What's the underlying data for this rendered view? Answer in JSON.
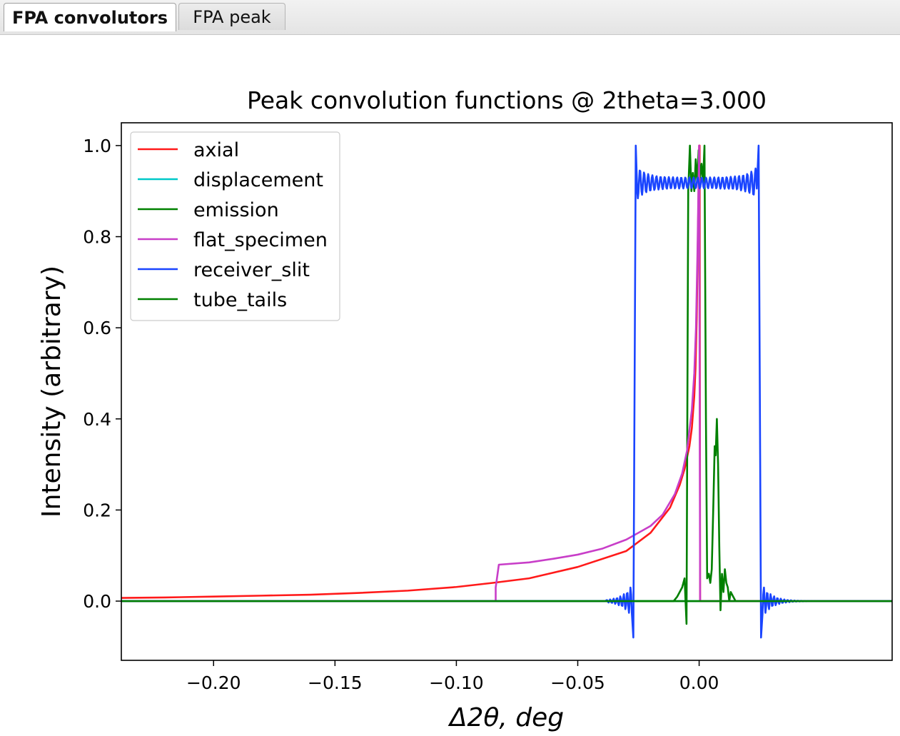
{
  "tabs": [
    {
      "label": "FPA convolutors",
      "active": true
    },
    {
      "label": "FPA peak",
      "active": false
    }
  ],
  "chart_data": {
    "type": "line",
    "title": "Peak convolution functions @ 2theta=3.000",
    "xlabel": "Δ2θ, deg",
    "ylabel": "Intensity (arbitrary)",
    "xlim": [
      -0.238,
      0.0795
    ],
    "ylim": [
      -0.13,
      1.05
    ],
    "xticks": [
      -0.2,
      -0.15,
      -0.1,
      -0.05,
      0.0
    ],
    "xtick_labels": [
      "−0.20",
      "−0.15",
      "−0.10",
      "−0.05",
      "0.00"
    ],
    "yticks": [
      0.0,
      0.2,
      0.4,
      0.6,
      0.8,
      1.0
    ],
    "ytick_labels": [
      "0.0",
      "0.2",
      "0.4",
      "0.6",
      "0.8",
      "1.0"
    ],
    "legend_position": "upper-left",
    "grid": false,
    "series": [
      {
        "name": "axial",
        "color": "#ff1a1a",
        "x": [
          -0.238,
          -0.22,
          -0.2,
          -0.18,
          -0.16,
          -0.14,
          -0.12,
          -0.1,
          -0.085,
          -0.07,
          -0.05,
          -0.03,
          -0.02,
          -0.012,
          -0.008,
          -0.006,
          -0.004,
          -0.003,
          -0.002,
          -0.0015,
          -0.001,
          -0.0005,
          0.0,
          0.0002,
          0.0004,
          0.0006,
          0.3
        ],
        "y": [
          0.007,
          0.008,
          0.01,
          0.012,
          0.014,
          0.018,
          0.023,
          0.031,
          0.04,
          0.05,
          0.075,
          0.11,
          0.15,
          0.205,
          0.255,
          0.29,
          0.34,
          0.38,
          0.45,
          0.51,
          0.62,
          0.8,
          1.0,
          1.0,
          0.0,
          0.0,
          0.0
        ]
      },
      {
        "name": "displacement",
        "color": "#00c8c8",
        "x": [
          -0.238,
          0.0028,
          0.0029,
          0.0032,
          0.3
        ],
        "y": [
          0.0,
          0.0,
          0.0,
          0.0,
          0.0
        ]
      },
      {
        "name": "emission",
        "color": "#008000",
        "x": [
          -0.238,
          -0.0105,
          -0.009,
          -0.008,
          -0.007,
          -0.006,
          -0.0052,
          -0.0045,
          -0.0038,
          -0.0032,
          -0.0026,
          -0.002,
          -0.0014,
          -0.0008,
          -0.0002,
          0.0004,
          0.001,
          0.0016,
          0.0022,
          0.0028,
          0.0033,
          0.004,
          0.0046,
          0.0052,
          0.0058,
          0.0064,
          0.0068,
          0.0073,
          0.0078,
          0.0083,
          0.0088,
          0.0094,
          0.01,
          0.0106,
          0.0112,
          0.0118,
          0.0124,
          0.013,
          0.014,
          0.015,
          0.016,
          0.3
        ],
        "y": [
          0.0,
          0.0,
          0.01,
          0.02,
          0.03,
          0.05,
          -0.05,
          0.9,
          1.0,
          0.9,
          0.94,
          0.9,
          0.97,
          0.92,
          0.99,
          0.93,
          0.96,
          0.92,
          1.0,
          0.4,
          0.05,
          0.06,
          0.04,
          0.07,
          0.2,
          0.34,
          0.32,
          0.4,
          0.3,
          0.12,
          -0.02,
          0.06,
          0.02,
          0.07,
          0.04,
          0.03,
          0.0,
          0.02,
          0.01,
          0.0,
          0.0,
          0.0
        ]
      },
      {
        "name": "flat_specimen",
        "color": "#c83ec8",
        "x": [
          -0.238,
          -0.0838,
          -0.0838,
          -0.0825,
          -0.07,
          -0.06,
          -0.05,
          -0.04,
          -0.03,
          -0.02,
          -0.015,
          -0.01,
          -0.007,
          -0.005,
          -0.003,
          -0.002,
          -0.0013,
          -0.0007,
          -0.0003,
          0.0,
          0.0004,
          0.0006,
          0.3
        ],
        "y": [
          0.0,
          0.0,
          0.03,
          0.08,
          0.085,
          0.093,
          0.102,
          0.115,
          0.135,
          0.165,
          0.19,
          0.235,
          0.28,
          0.33,
          0.42,
          0.5,
          0.6,
          0.76,
          0.9,
          1.0,
          0.0,
          0.0,
          0.0
        ]
      },
      {
        "name": "receiver_slit",
        "color": "#1a45ff",
        "ripple": {
          "edges": [
            -0.0265,
            0.0249
          ],
          "level": 0.918,
          "amplitude": 0.012,
          "period": 0.0017,
          "edge_peak": 1.0,
          "edge_dip": -0.08,
          "tail_amplitude": 0.012,
          "tail_period": 0.0014
        }
      },
      {
        "name": "tube_tails",
        "color": "#008000",
        "x": [
          -0.238,
          -0.004,
          -0.004,
          0.004,
          0.004,
          0.3
        ],
        "y": [
          0.0,
          0.0,
          0.0,
          0.0,
          0.0,
          0.0
        ]
      }
    ]
  }
}
